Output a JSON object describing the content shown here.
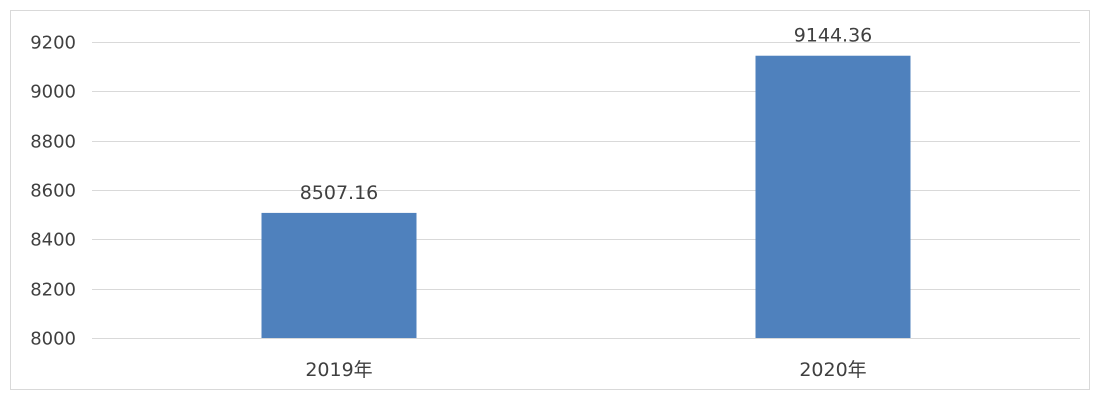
{
  "chart_data": {
    "type": "bar",
    "title": "",
    "xlabel": "",
    "ylabel": "",
    "categories": [
      "2019年",
      "2020年"
    ],
    "values": [
      8507.16,
      9144.36
    ],
    "data_labels": [
      "8507.16",
      "9144.36"
    ],
    "ylim": [
      8000,
      9200
    ],
    "yticks": [
      8000,
      8200,
      8400,
      8600,
      8800,
      9000,
      9200
    ],
    "ytick_labels": [
      "8000",
      "8200",
      "8400",
      "8600",
      "8800",
      "9000",
      "9200"
    ],
    "grid": true,
    "legend": "none",
    "colors": {
      "bar": "#4f81bd",
      "grid": "#d9d9d9",
      "text": "#404040"
    }
  }
}
